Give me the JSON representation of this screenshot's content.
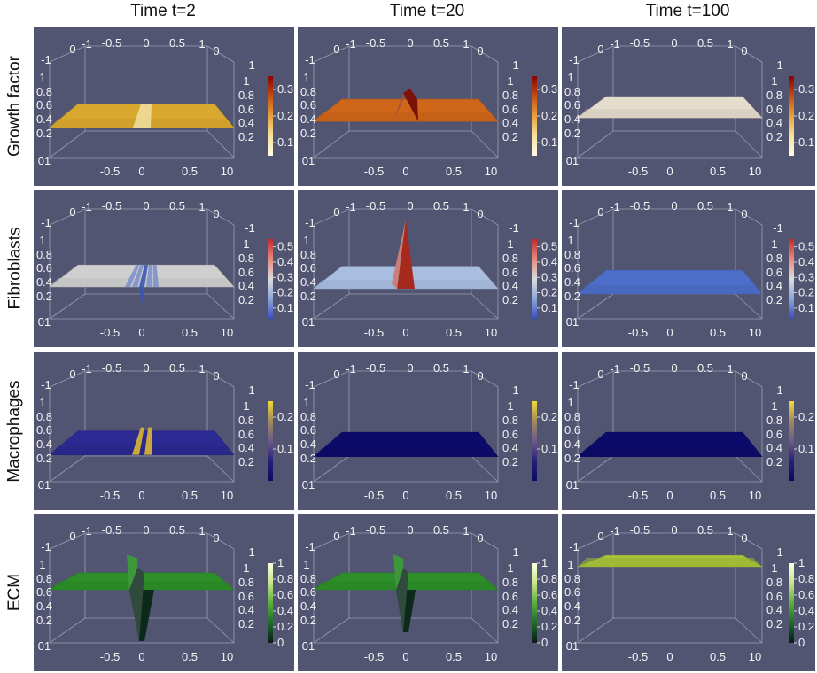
{
  "chart_data": {
    "type": "surface-grid",
    "columns": [
      "Time t=2",
      "Time t=20",
      "Time t=100"
    ],
    "rows": [
      "Growth factor",
      "Fibroblasts",
      "Macrophages",
      "ECM"
    ],
    "axis_ticks": {
      "back_top": [
        "0",
        "-1",
        "-0.5",
        "0",
        "0.5",
        "1",
        "0"
      ],
      "left_side": [
        "-1",
        "1",
        "0.8",
        "0.6",
        "0.4",
        "0.2",
        "01"
      ],
      "right_side": [
        "-1",
        "1",
        "0.8",
        "0.6",
        "0.4",
        "0.2"
      ],
      "front_bottom": [
        "-0.5",
        "0",
        "0.5",
        "10"
      ]
    },
    "colorbars": [
      {
        "row": "Growth factor",
        "colormap": "yellow-orange-brown",
        "ticks": [
          "0.3",
          "0.2",
          "0.1"
        ],
        "range": [
          0.05,
          0.35
        ],
        "stops": [
          "#8b0000",
          "#c44d14",
          "#e8a23a",
          "#f6e39b",
          "#fffbe8"
        ]
      },
      {
        "row": "Fibroblasts",
        "colormap": "cool-warm",
        "ticks": [
          "0.5",
          "0.4",
          "0.3",
          "0.2",
          "0.1"
        ],
        "range": [
          0.03,
          0.55
        ],
        "stops": [
          "#c22b2b",
          "#e88a7a",
          "#dddddd",
          "#8aa6d6",
          "#3b4cc0"
        ]
      },
      {
        "row": "Macrophages",
        "colormap": "plasma-like",
        "ticks": [
          "0.2",
          "0.1"
        ],
        "range": [
          0.0,
          0.25
        ],
        "stops": [
          "#f2d93b",
          "#a08a5a",
          "#6e5a8a",
          "#2a1f7a",
          "#0a0a60"
        ]
      },
      {
        "row": "ECM",
        "colormap": "green",
        "ticks": [
          "1",
          "0.8",
          "0.6",
          "0.4",
          "0.2",
          "0"
        ],
        "range": [
          0.0,
          1.0
        ],
        "stops": [
          "#ffffe0",
          "#c6e48a",
          "#5aae3a",
          "#1e6b2a",
          "#0a1a18"
        ]
      }
    ],
    "surfaces": [
      [
        {
          "base": "#d9a82e",
          "height": 0.35,
          "feature": "dip",
          "feature_color": "#f0dfa0"
        },
        {
          "base": "#d0661a",
          "height": 0.42,
          "feature": "peak",
          "feature_color": "#7a1208"
        },
        {
          "base": "#e4ddcc",
          "height": 0.46,
          "feature": "none",
          "feature_color": "#e4ddcc"
        }
      ],
      [
        {
          "base": "#cfcfcf",
          "height": 0.38,
          "feature": "ripple-down",
          "feature_color": "#3b56b0"
        },
        {
          "base": "#a9bde0",
          "height": 0.36,
          "feature": "spike-up",
          "feature_color": "#a62a1e"
        },
        {
          "base": "#4d6ec8",
          "height": 0.3,
          "feature": "none",
          "feature_color": "#4d6ec8"
        }
      ],
      [
        {
          "base": "#2b2a92",
          "height": 0.32,
          "feature": "twin-ridge",
          "feature_color": "#c9a83c"
        },
        {
          "base": "#0d0b6a",
          "height": 0.3,
          "feature": "none",
          "feature_color": "#0d0b6a"
        },
        {
          "base": "#0d0b6a",
          "height": 0.3,
          "feature": "none",
          "feature_color": "#0d0b6a"
        }
      ],
      [
        {
          "base": "#2e8e2a",
          "height": 0.62,
          "feature": "deep-trench",
          "feature_color": "#0b2a1c"
        },
        {
          "base": "#2e8e2a",
          "height": 0.62,
          "feature": "v-trench",
          "feature_color": "#0b2a1c"
        },
        {
          "base": "#a8c23a",
          "height": 0.88,
          "feature": "none",
          "feature_color": "#a8c23a"
        }
      ]
    ]
  }
}
